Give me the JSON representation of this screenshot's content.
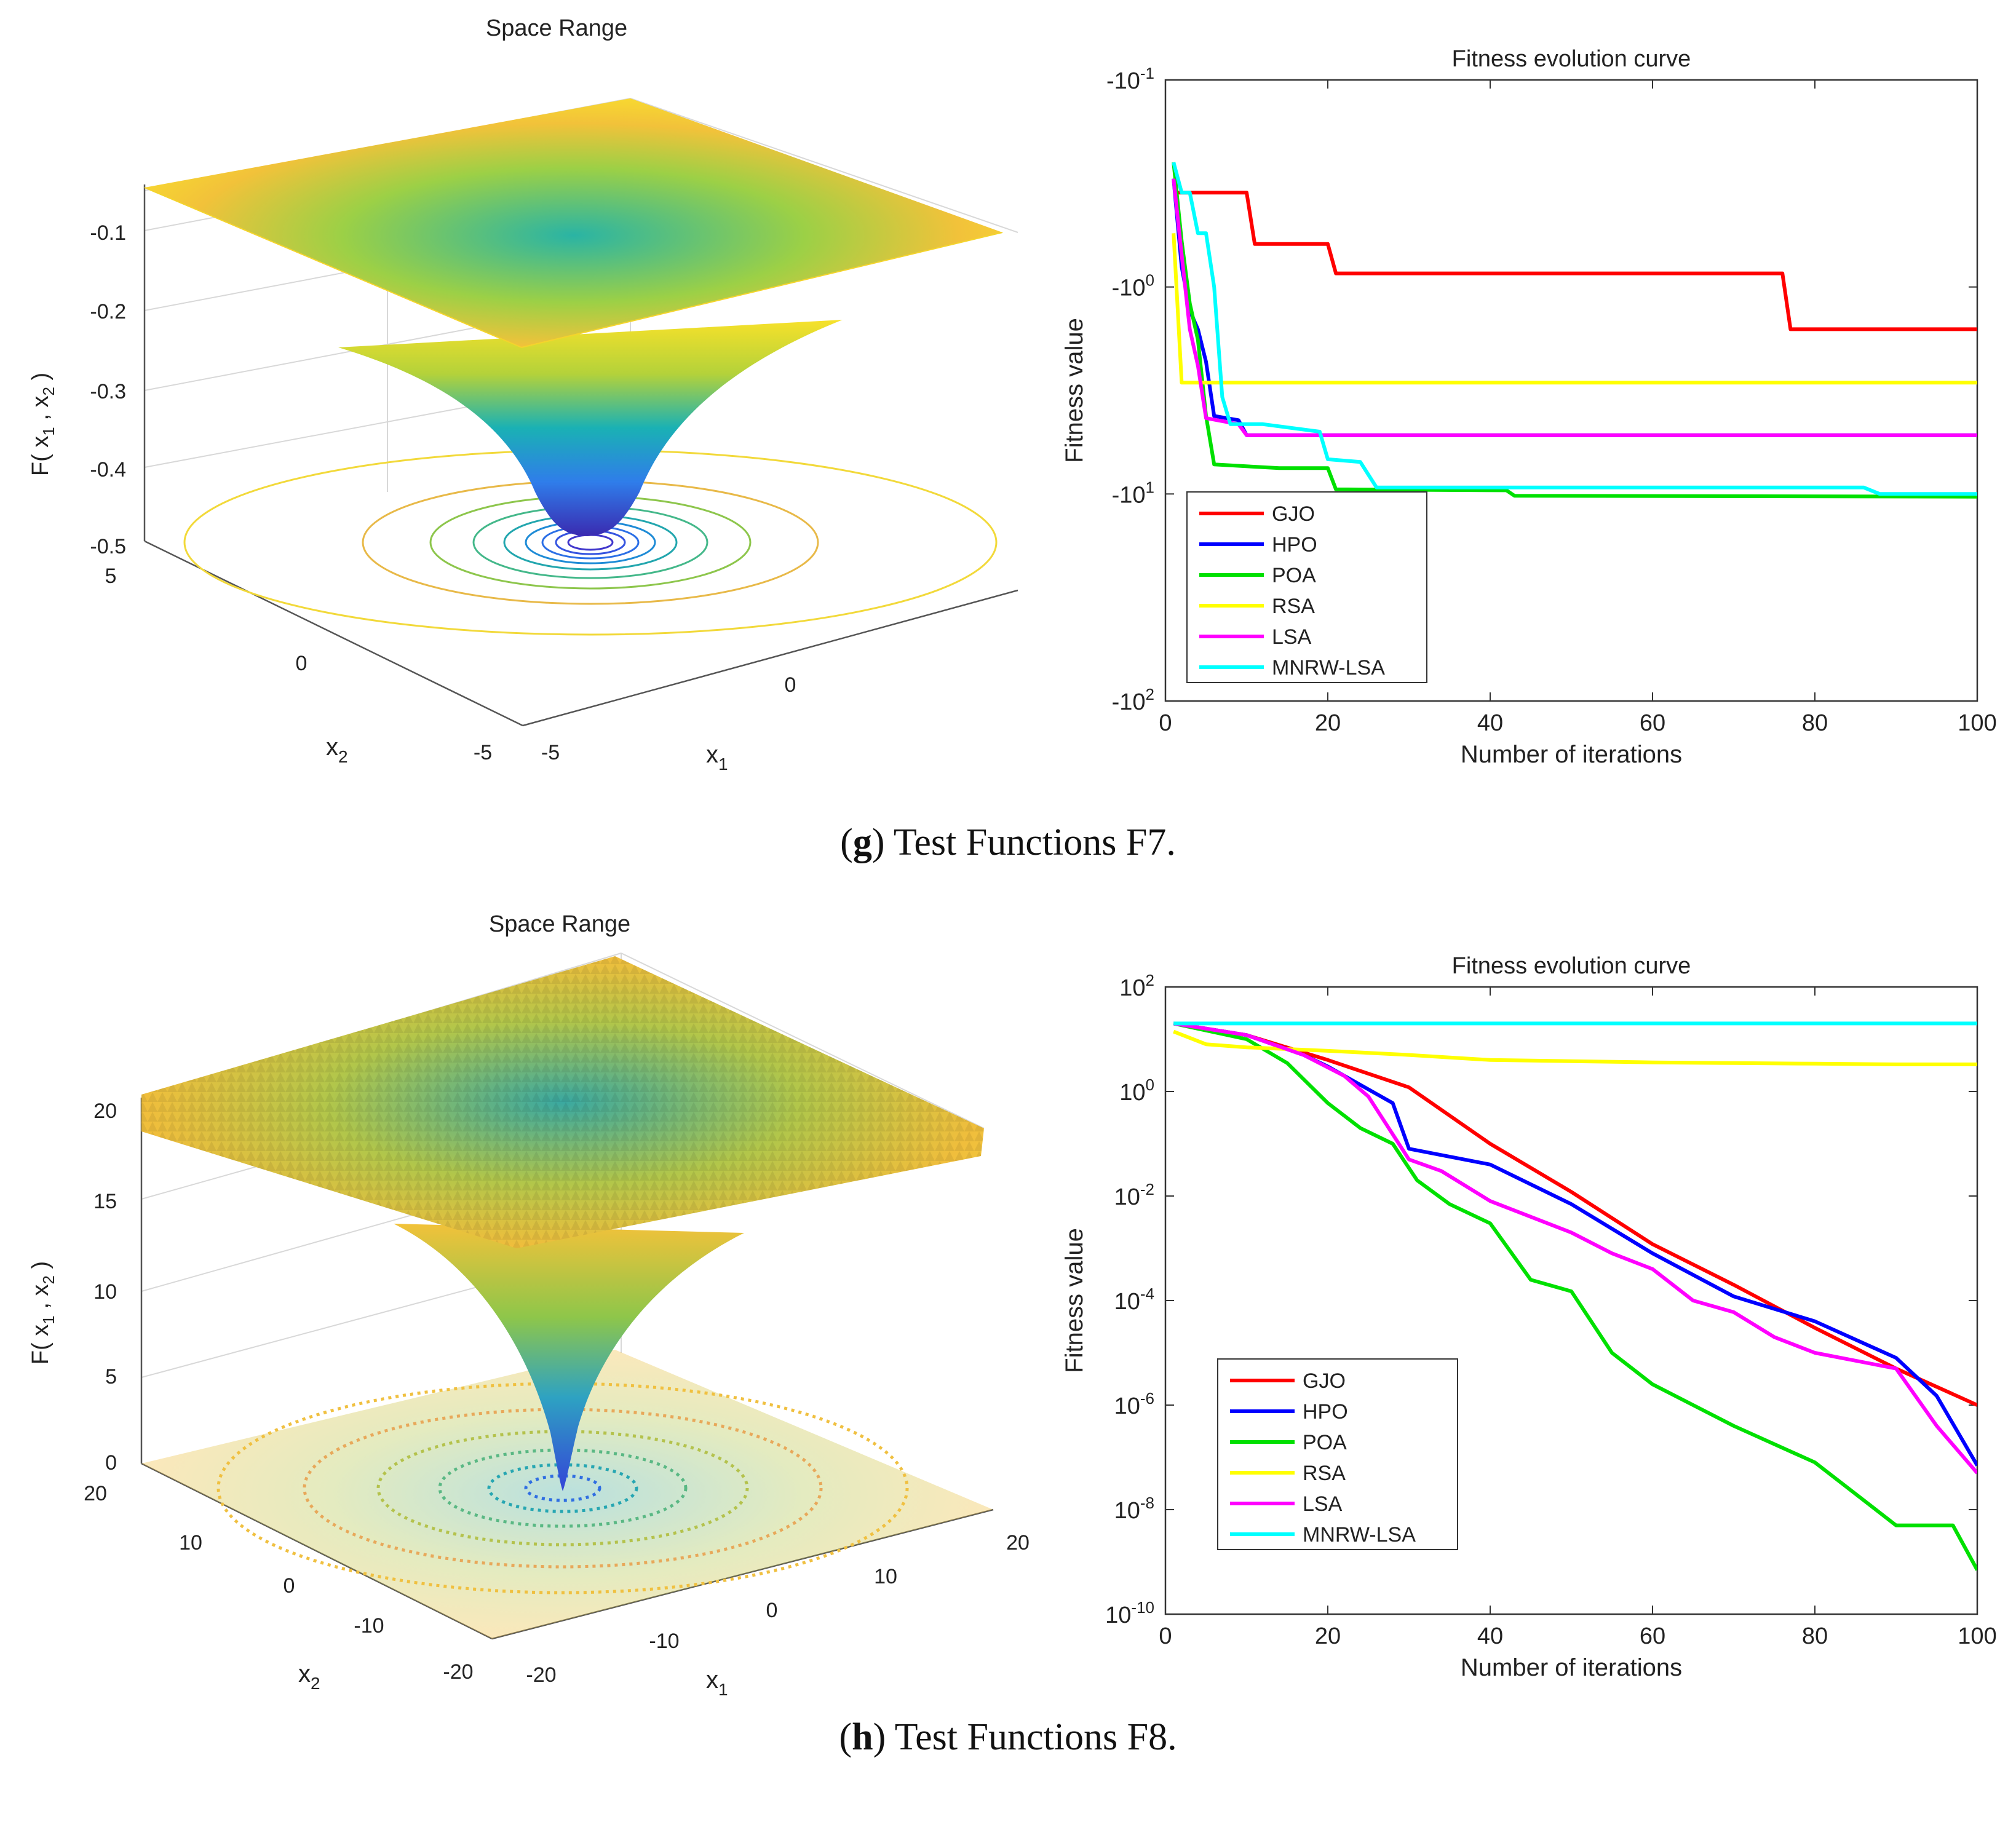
{
  "surface_panels": [
    {
      "title": "Space Range",
      "zlabel_main": "F( x",
      "zlabel_sub1": "1",
      "zlabel_comma": " , x",
      "zlabel_sub2": "2",
      "zlabel_end": " )",
      "x1_label": "x",
      "x1_sub": "1",
      "x2_label": "x",
      "x2_sub": "2",
      "z_ticks": [
        "-0.1",
        "-0.2",
        "-0.3",
        "-0.4",
        "-0.5"
      ],
      "x1_ticks": [
        "-5",
        "0"
      ],
      "x2_ticks": [
        "5",
        "0",
        "-5"
      ]
    },
    {
      "title": "Space Range",
      "zlabel_main": "F( x",
      "zlabel_sub1": "1",
      "zlabel_comma": " , x",
      "zlabel_sub2": "2",
      "zlabel_end": " )",
      "x1_label": "x",
      "x1_sub": "1",
      "x2_label": "x",
      "x2_sub": "2",
      "z_ticks": [
        "20",
        "15",
        "10",
        "5",
        "0"
      ],
      "x1_ticks": [
        "-20",
        "-10",
        "0",
        "10",
        "20"
      ],
      "x2_ticks": [
        "20",
        "10",
        "0",
        "-10",
        "-20"
      ]
    }
  ],
  "chart_data": [
    {
      "type": "line",
      "title": "Fitness evolution curve",
      "xlabel": "Number of iterations",
      "ylabel": "Fitness value",
      "x_scale": "linear",
      "y_scale": "log (negative values)",
      "xlim": [
        0,
        100
      ],
      "x_ticks": [
        "0",
        "20",
        "40",
        "60",
        "80",
        "100"
      ],
      "y_ticks": [
        {
          "base": "-10",
          "exp": "-1"
        },
        {
          "base": "-10",
          "exp": "0"
        },
        {
          "base": "-10",
          "exp": "1"
        },
        {
          "base": "-10",
          "exp": "2"
        }
      ],
      "legend_position": "bottom-left",
      "series": [
        {
          "name": "GJO",
          "color": "#ff0000",
          "x": [
            1,
            10,
            11,
            20,
            21,
            76,
            77,
            100
          ],
          "y": [
            -0.35,
            -0.35,
            -0.62,
            -0.62,
            -0.86,
            -0.86,
            -1.6,
            -1.6
          ]
        },
        {
          "name": "HPO",
          "color": "#0000ff",
          "x": [
            1,
            2,
            3,
            4,
            5,
            6,
            9,
            10,
            100
          ],
          "y": [
            -0.3,
            -0.8,
            -1.3,
            -1.6,
            -2.3,
            -4.2,
            -4.4,
            -5.2,
            -5.2
          ]
        },
        {
          "name": "POA",
          "color": "#00e000",
          "x": [
            1,
            2,
            3,
            4,
            5,
            6,
            14,
            20,
            21,
            42,
            43,
            100
          ],
          "y": [
            -0.25,
            -0.6,
            -1.2,
            -1.8,
            -4.2,
            -7.2,
            -7.5,
            -7.5,
            -9.5,
            -9.6,
            -10.2,
            -10.3
          ]
        },
        {
          "name": "RSA",
          "color": "#ffff00",
          "x": [
            1,
            2,
            100
          ],
          "y": [
            -0.55,
            -2.9,
            -2.9
          ]
        },
        {
          "name": "LSA",
          "color": "#ff00ff",
          "x": [
            1,
            2,
            3,
            4,
            5,
            9,
            10,
            100
          ],
          "y": [
            -0.3,
            -0.7,
            -1.6,
            -2.4,
            -4.3,
            -4.6,
            -5.2,
            -5.2
          ]
        },
        {
          "name": "MNRW-LSA",
          "color": "#00ffff",
          "x": [
            1,
            2,
            3,
            4,
            5,
            6,
            7,
            8,
            12,
            19,
            20,
            24,
            26,
            56,
            86,
            88,
            100
          ],
          "y": [
            -0.25,
            -0.35,
            -0.35,
            -0.55,
            -0.55,
            -1.0,
            -3.4,
            -4.6,
            -4.6,
            -5.0,
            -6.8,
            -7.0,
            -9.3,
            -9.3,
            -9.3,
            -10.0,
            -10.0
          ]
        }
      ]
    },
    {
      "type": "line",
      "title": "Fitness evolution curve",
      "xlabel": "Number of iterations",
      "ylabel": "Fitness value",
      "x_scale": "linear",
      "y_scale": "log",
      "xlim": [
        0,
        100
      ],
      "x_ticks": [
        "0",
        "20",
        "40",
        "60",
        "80",
        "100"
      ],
      "y_ticks": [
        {
          "base": "10",
          "exp": "2"
        },
        {
          "base": "10",
          "exp": "0"
        },
        {
          "base": "10",
          "exp": "-2"
        },
        {
          "base": "10",
          "exp": "-4"
        },
        {
          "base": "10",
          "exp": "-6"
        },
        {
          "base": "10",
          "exp": "-8"
        },
        {
          "base": "10",
          "exp": "-10"
        }
      ],
      "legend_position": "bottom-left",
      "series": [
        {
          "name": "GJO",
          "color": "#ff0000",
          "x": [
            1,
            10,
            20,
            30,
            40,
            50,
            60,
            70,
            80,
            90,
            100
          ],
          "y": [
            20,
            12,
            4,
            1.2,
            0.1,
            0.012,
            0.0012,
            0.0002,
            3e-05,
            5e-06,
            1e-06
          ]
        },
        {
          "name": "HPO",
          "color": "#0000ff",
          "x": [
            1,
            10,
            17,
            20,
            28,
            30,
            40,
            50,
            60,
            70,
            80,
            90,
            95,
            100
          ],
          "y": [
            20,
            12,
            5,
            3,
            0.6,
            0.08,
            0.04,
            0.007,
            0.0008,
            0.00012,
            4e-05,
            8e-06,
            1.5e-06,
            7e-08
          ]
        },
        {
          "name": "POA",
          "color": "#00e000",
          "x": [
            1,
            10,
            15,
            20,
            24,
            28,
            31,
            35,
            40,
            45,
            50,
            55,
            60,
            70,
            80,
            90,
            97,
            100
          ],
          "y": [
            20,
            10,
            3.5,
            0.6,
            0.2,
            0.1,
            0.02,
            0.007,
            0.003,
            0.00025,
            0.00015,
            1e-05,
            2.5e-06,
            4e-07,
            8e-08,
            5e-09,
            5e-09,
            7e-10
          ]
        },
        {
          "name": "RSA",
          "color": "#ffff00",
          "x": [
            1,
            5,
            10,
            20,
            30,
            40,
            50,
            60,
            70,
            80,
            90,
            100
          ],
          "y": [
            14,
            8,
            7,
            6,
            5,
            4,
            3.8,
            3.6,
            3.5,
            3.4,
            3.3,
            3.3
          ]
        },
        {
          "name": "LSA",
          "color": "#ff00ff",
          "x": [
            1,
            10,
            17,
            22,
            25,
            30,
            34,
            40,
            50,
            55,
            60,
            65,
            70,
            75,
            80,
            90,
            95,
            100
          ],
          "y": [
            20,
            12,
            5,
            2,
            0.8,
            0.05,
            0.03,
            0.008,
            0.002,
            0.0008,
            0.0004,
            0.0001,
            6e-05,
            2e-05,
            1e-05,
            5e-06,
            4e-07,
            5e-08
          ]
        },
        {
          "name": "MNRW-LSA",
          "color": "#00ffff",
          "x": [
            1,
            100
          ],
          "y": [
            20,
            20
          ]
        }
      ]
    }
  ],
  "captions": [
    {
      "letter": "g",
      "text": " Test Functions F7."
    },
    {
      "letter": "h",
      "text": " Test Functions F8."
    }
  ]
}
